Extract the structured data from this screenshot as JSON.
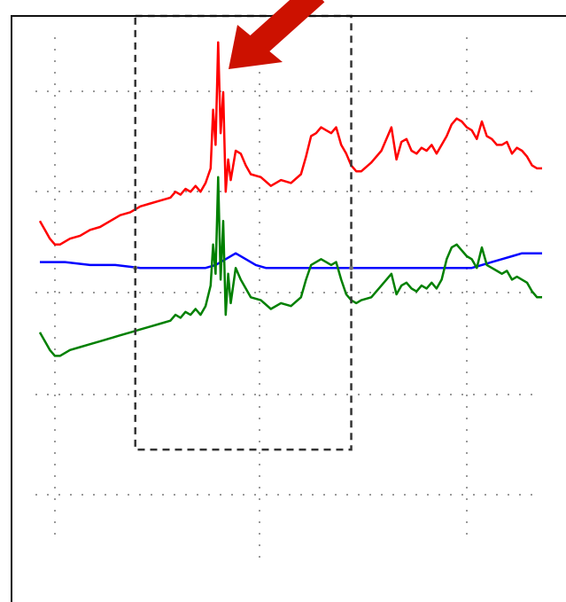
{
  "chart_data": {
    "type": "line",
    "title": "",
    "xlabel": "",
    "ylabel": "",
    "xlim": [
      0,
      100
    ],
    "ylim": [
      0,
      100
    ],
    "grid": true,
    "legend": "none",
    "highlight_region": {
      "x": [
        19,
        62
      ],
      "y": [
        26,
        100
      ]
    },
    "annotation_arrow_color": "#cc1100",
    "series": [
      {
        "color": "#ff0000",
        "x": [
          0,
          1,
          2,
          3,
          4,
          6,
          8,
          10,
          12,
          14,
          16,
          18,
          20,
          22,
          24,
          26,
          27,
          28,
          29,
          30,
          31,
          32,
          33,
          34,
          34.5,
          35,
          35.5,
          36,
          36.5,
          37,
          37.5,
          38,
          39,
          40,
          41,
          42,
          44,
          46,
          48,
          50,
          52,
          53,
          54,
          55,
          56,
          57,
          58,
          59,
          60,
          61,
          62,
          63,
          64,
          66,
          68,
          70,
          71,
          72,
          73,
          74,
          75,
          76,
          77,
          78,
          79,
          80,
          81,
          82,
          83,
          84,
          85,
          86,
          87,
          88,
          89,
          90,
          91,
          92,
          93,
          94,
          95,
          96,
          97,
          98,
          99,
          100
        ],
        "y": [
          65.0,
          63.5,
          62.0,
          61.0,
          61.0,
          62.0,
          62.5,
          63.5,
          64.0,
          65.0,
          66.0,
          66.5,
          67.5,
          68.0,
          68.5,
          69.0,
          70.0,
          69.5,
          70.5,
          70.0,
          71.0,
          70.0,
          71.5,
          74.0,
          84.0,
          78.0,
          95.5,
          80.0,
          87.0,
          70.0,
          75.5,
          72.0,
          77.0,
          76.5,
          74.5,
          73.0,
          72.5,
          71.0,
          72.0,
          71.5,
          73.0,
          76.0,
          79.5,
          80.0,
          81.0,
          80.5,
          80.0,
          81.0,
          78.0,
          76.5,
          74.5,
          73.5,
          73.5,
          75.0,
          77.0,
          81.0,
          75.5,
          78.5,
          79.0,
          77.0,
          76.5,
          77.5,
          77.0,
          78.0,
          76.5,
          78.0,
          79.5,
          81.5,
          82.5,
          82.0,
          81.0,
          80.5,
          79.0,
          82.0,
          79.5,
          79.0,
          78.0,
          78.0,
          78.5,
          76.5,
          77.5,
          77.0,
          76.0,
          74.5,
          74.0,
          74.0
        ]
      },
      {
        "color": "#0000ff",
        "x": [
          0,
          5,
          10,
          15,
          20,
          25,
          30,
          33,
          35,
          37,
          39,
          41,
          43,
          45,
          50,
          55,
          60,
          65,
          70,
          75,
          80,
          85,
          86,
          88,
          90,
          92,
          94,
          96,
          98,
          100
        ],
        "y": [
          58.0,
          58.0,
          57.5,
          57.5,
          57.0,
          57.0,
          57.0,
          57.0,
          57.5,
          58.5,
          59.5,
          58.5,
          57.5,
          57.0,
          57.0,
          57.0,
          57.0,
          57.0,
          57.0,
          57.0,
          57.0,
          57.0,
          57.0,
          57.5,
          58.0,
          58.5,
          59.0,
          59.5,
          59.5,
          59.5
        ],
        "marker_x": [
          19,
          62
        ]
      },
      {
        "color": "#008000",
        "x": [
          0,
          1,
          2,
          3,
          4,
          6,
          8,
          10,
          12,
          14,
          16,
          18,
          20,
          22,
          24,
          26,
          27,
          28,
          29,
          30,
          31,
          32,
          33,
          34,
          34.5,
          35,
          35.5,
          36,
          36.5,
          37,
          37.5,
          38,
          39,
          40,
          41,
          42,
          44,
          46,
          48,
          50,
          52,
          53,
          54,
          55,
          56,
          57,
          58,
          59,
          60,
          61,
          62,
          63,
          64,
          66,
          68,
          70,
          71,
          72,
          73,
          74,
          75,
          76,
          77,
          78,
          79,
          80,
          81,
          82,
          83,
          84,
          85,
          86,
          87,
          88,
          89,
          90,
          91,
          92,
          93,
          94,
          95,
          96,
          97,
          98,
          99,
          100
        ],
        "y": [
          46.0,
          44.5,
          43.0,
          42.0,
          42.0,
          43.0,
          43.5,
          44.0,
          44.5,
          45.0,
          45.5,
          46.0,
          46.5,
          47.0,
          47.5,
          48.0,
          49.0,
          48.5,
          49.5,
          49.0,
          50.0,
          49.0,
          50.5,
          54.0,
          61.0,
          56.0,
          72.5,
          55.0,
          65.0,
          49.0,
          56.0,
          51.0,
          57.0,
          55.0,
          53.5,
          52.0,
          51.5,
          50.0,
          51.0,
          50.5,
          52.0,
          55.0,
          57.5,
          58.0,
          58.5,
          58.0,
          57.5,
          58.0,
          55.0,
          52.5,
          51.5,
          51.0,
          51.5,
          52.0,
          54.0,
          56.0,
          52.5,
          54.0,
          54.5,
          53.5,
          53.0,
          54.0,
          53.5,
          54.5,
          53.5,
          55.0,
          58.5,
          60.5,
          61.0,
          60.0,
          59.0,
          58.5,
          57.0,
          60.5,
          57.5,
          57.0,
          56.5,
          56.0,
          56.5,
          55.0,
          55.5,
          55.0,
          54.5,
          53.0,
          52.0,
          52.0
        ]
      }
    ]
  }
}
